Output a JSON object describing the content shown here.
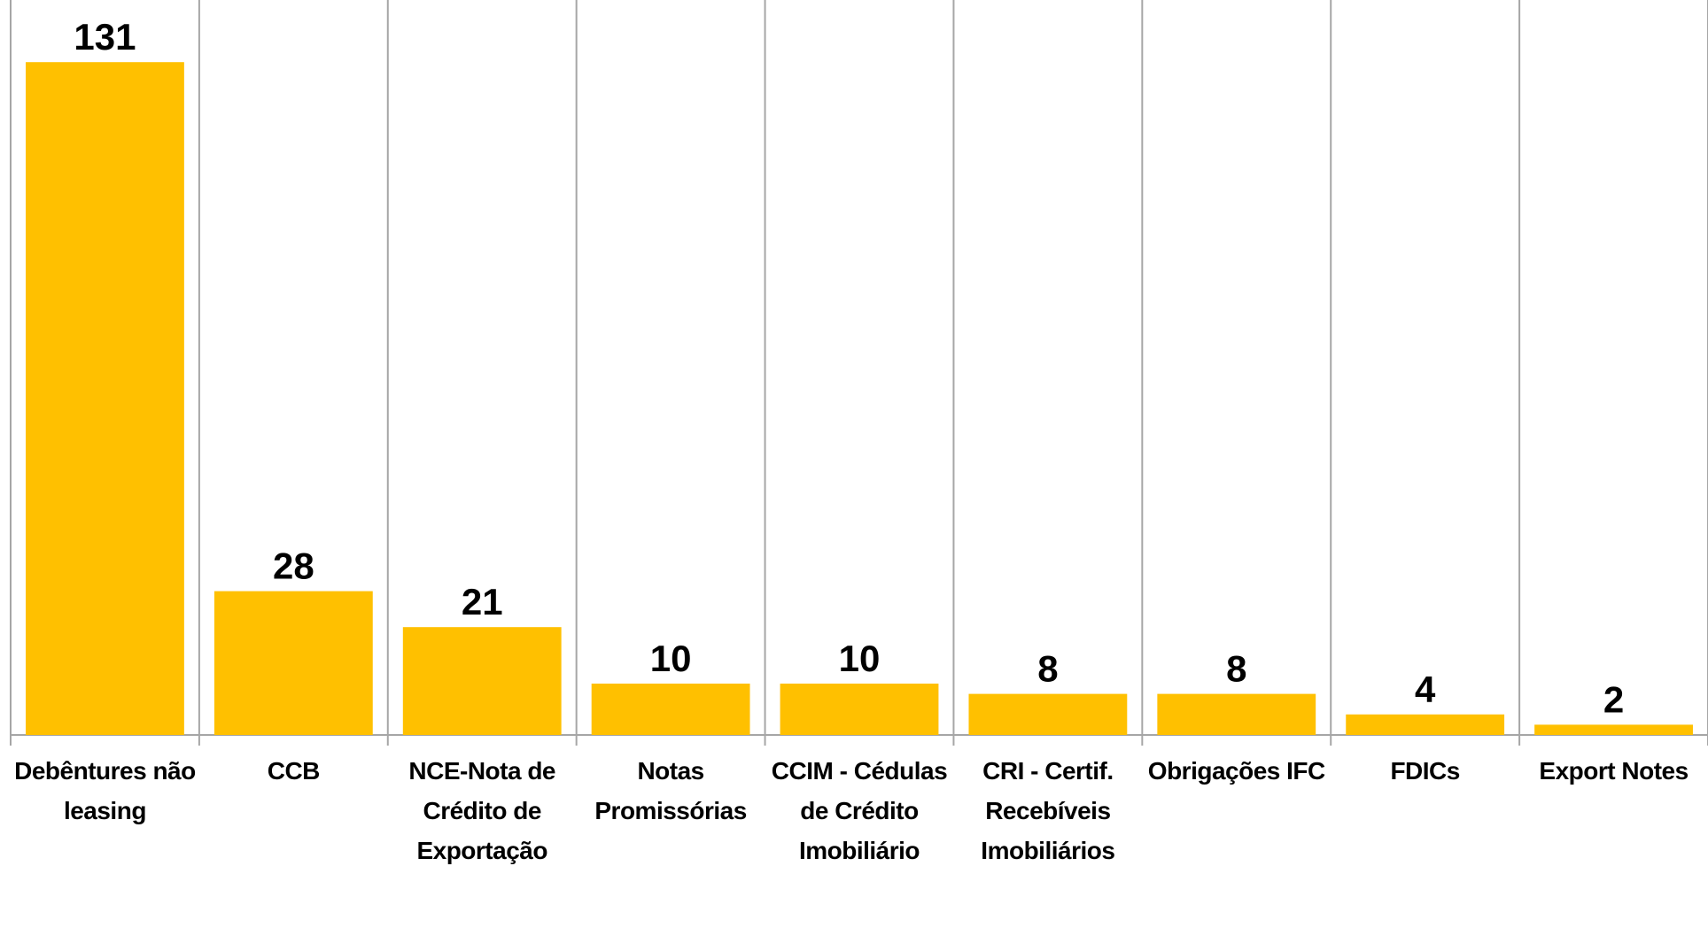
{
  "chart_data": {
    "type": "bar",
    "categories": [
      "Debêntures não leasing",
      "CCB",
      "NCE-Nota de Crédito de Exportação",
      "Notas Promissórias",
      "CCIM - Cédulas de Crédito Imobiliário",
      "CRI - Certif. Recebíveis Imobiliários",
      "Obrigações IFC",
      "FDICs",
      "Export Notes"
    ],
    "values": [
      131,
      28,
      21,
      10,
      10,
      8,
      8,
      4,
      2
    ],
    "color": "#ffc000",
    "ylim": [
      0,
      140
    ]
  }
}
